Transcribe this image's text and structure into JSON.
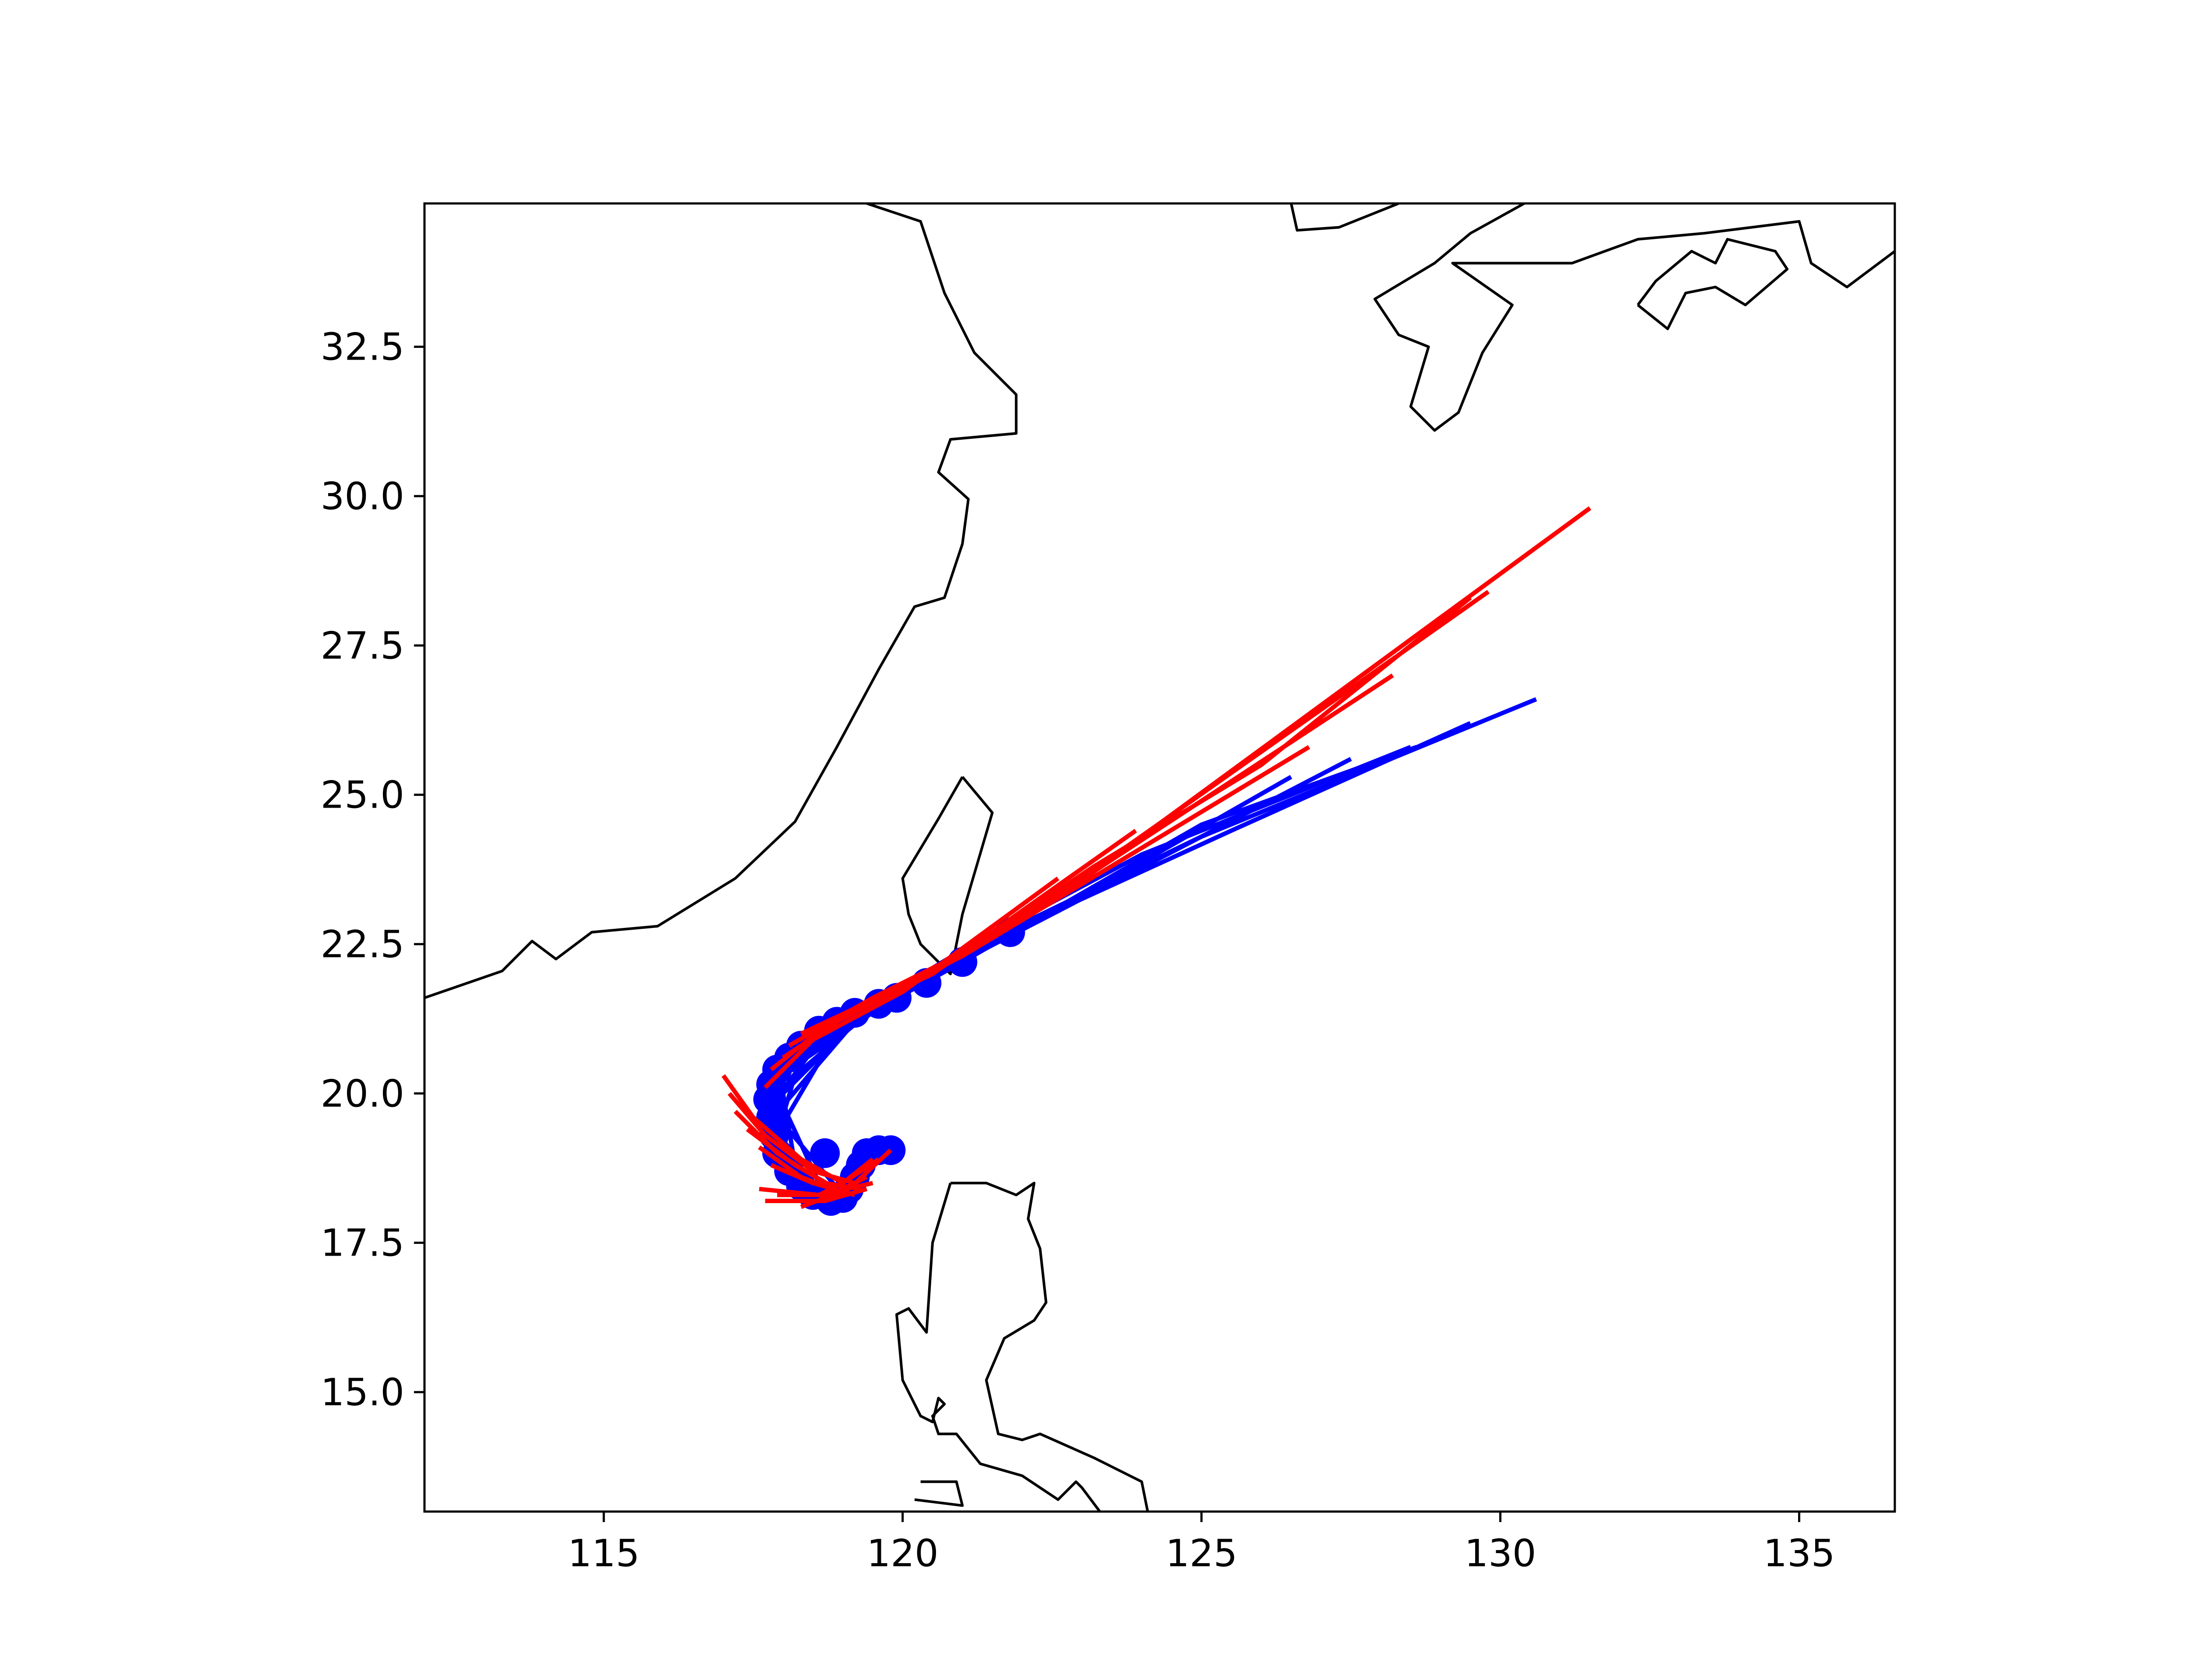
{
  "chart_data": {
    "type": "line",
    "title": "",
    "xlabel": "",
    "ylabel": "",
    "xlim": [
      112,
      136.6
    ],
    "ylim": [
      13.0,
      34.9
    ],
    "x_ticks": [
      115,
      120,
      125,
      130,
      135
    ],
    "y_ticks": [
      15.0,
      17.5,
      20.0,
      22.5,
      25.0,
      27.5,
      30.0,
      32.5
    ],
    "x_tick_labels": [
      "115",
      "120",
      "125",
      "130",
      "135"
    ],
    "y_tick_labels": [
      "15.0",
      "17.5",
      "20.0",
      "22.5",
      "25.0",
      "27.5",
      "30.0",
      "32.5"
    ],
    "grid": false,
    "legend": "none",
    "colors": {
      "observed": "#0000ff",
      "predicted": "#ff0000",
      "coastline": "#000000"
    },
    "observed_track_points": [
      [
        119.8,
        19.05
      ],
      [
        119.6,
        19.05
      ],
      [
        119.4,
        19.0
      ],
      [
        119.3,
        18.8
      ],
      [
        119.2,
        18.6
      ],
      [
        119.1,
        18.4
      ],
      [
        119.0,
        18.25
      ],
      [
        118.8,
        18.2
      ],
      [
        118.5,
        18.3
      ],
      [
        118.3,
        18.45
      ],
      [
        118.1,
        18.7
      ],
      [
        117.9,
        19.0
      ],
      [
        117.85,
        19.3
      ],
      [
        117.8,
        19.6
      ],
      [
        117.75,
        19.9
      ],
      [
        117.8,
        20.15
      ],
      [
        117.9,
        20.4
      ],
      [
        118.1,
        20.6
      ],
      [
        118.3,
        20.8
      ],
      [
        118.6,
        21.05
      ],
      [
        118.9,
        21.2
      ],
      [
        119.2,
        21.35
      ],
      [
        119.6,
        21.5
      ],
      [
        119.9,
        21.6
      ],
      [
        120.4,
        21.85
      ],
      [
        121.0,
        22.2
      ],
      [
        121.8,
        22.7
      ],
      [
        118.7,
        19.0
      ]
    ],
    "observed_forecasts": [
      [
        [
          119.0,
          18.3
        ],
        [
          118.0,
          19.5
        ],
        [
          119.0,
          21.2
        ],
        [
          121.0,
          22.4
        ],
        [
          124.0,
          24.0
        ],
        [
          128.5,
          25.8
        ]
      ],
      [
        [
          118.6,
          18.5
        ],
        [
          118.0,
          19.8
        ],
        [
          119.2,
          21.2
        ],
        [
          121.5,
          22.6
        ],
        [
          125.0,
          24.3
        ],
        [
          130.6,
          26.6
        ]
      ],
      [
        [
          118.2,
          18.8
        ],
        [
          118.0,
          20.0
        ],
        [
          119.3,
          21.3
        ],
        [
          122.0,
          22.8
        ],
        [
          125.5,
          24.4
        ],
        [
          129.5,
          26.2
        ]
      ],
      [
        [
          117.9,
          19.3
        ],
        [
          118.2,
          20.3
        ],
        [
          119.6,
          21.5
        ],
        [
          122.5,
          23.0
        ],
        [
          127.5,
          25.6
        ]
      ],
      [
        [
          117.8,
          19.8
        ],
        [
          118.4,
          20.6
        ],
        [
          120.0,
          21.7
        ],
        [
          123.0,
          23.3
        ],
        [
          126.5,
          25.3
        ]
      ],
      [
        [
          118.0,
          20.4
        ],
        [
          119.0,
          21.1
        ],
        [
          121.0,
          22.2
        ],
        [
          125.0,
          24.5
        ],
        [
          128.6,
          25.8
        ]
      ],
      [
        [
          119.6,
          19.1
        ],
        [
          119.3,
          18.7
        ],
        [
          119.0,
          18.4
        ]
      ]
    ],
    "predicted_forecasts": [
      [
        [
          117.0,
          20.3
        ],
        [
          117.5,
          19.6
        ],
        [
          118.3,
          18.9
        ],
        [
          119.0,
          18.5
        ],
        [
          119.6,
          18.9
        ]
      ],
      [
        [
          117.1,
          20.0
        ],
        [
          117.7,
          19.3
        ],
        [
          118.5,
          18.7
        ],
        [
          119.2,
          18.5
        ]
      ],
      [
        [
          117.2,
          19.7
        ],
        [
          117.9,
          19.0
        ],
        [
          118.7,
          18.5
        ],
        [
          119.3,
          18.4
        ]
      ],
      [
        [
          117.4,
          19.4
        ],
        [
          118.2,
          18.8
        ],
        [
          118.9,
          18.4
        ]
      ],
      [
        [
          117.6,
          19.1
        ],
        [
          118.3,
          18.6
        ],
        [
          119.1,
          18.3
        ]
      ],
      [
        [
          117.8,
          18.8
        ],
        [
          118.5,
          18.5
        ],
        [
          119.2,
          18.3
        ]
      ],
      [
        [
          117.6,
          18.4
        ],
        [
          118.6,
          18.3
        ],
        [
          119.5,
          18.5
        ]
      ],
      [
        [
          117.7,
          18.2
        ],
        [
          118.7,
          18.2
        ],
        [
          119.4,
          18.4
        ]
      ],
      [
        [
          117.9,
          18.3
        ],
        [
          118.8,
          18.3
        ],
        [
          119.4,
          18.6
        ]
      ],
      [
        [
          118.6,
          18.3
        ],
        [
          119.0,
          18.5
        ],
        [
          119.5,
          18.9
        ]
      ],
      [
        [
          118.3,
          18.1
        ],
        [
          119.1,
          18.4
        ],
        [
          119.8,
          19.05
        ]
      ],
      [
        [
          117.7,
          20.1
        ],
        [
          118.5,
          20.9
        ],
        [
          120.0,
          21.7
        ],
        [
          122.6,
          23.6
        ]
      ],
      [
        [
          117.8,
          20.4
        ],
        [
          118.8,
          21.2
        ],
        [
          120.5,
          22.0
        ],
        [
          123.9,
          24.4
        ]
      ],
      [
        [
          118.0,
          20.6
        ],
        [
          119.2,
          21.4
        ],
        [
          121.0,
          22.3
        ],
        [
          126.8,
          25.8
        ]
      ],
      [
        [
          118.1,
          20.8
        ],
        [
          119.5,
          21.6
        ],
        [
          121.5,
          22.6
        ],
        [
          128.2,
          27.0
        ]
      ],
      [
        [
          118.3,
          21.0
        ],
        [
          120.0,
          21.8
        ],
        [
          122.0,
          22.9
        ],
        [
          129.8,
          28.4
        ]
      ],
      [
        [
          118.6,
          21.1
        ],
        [
          120.4,
          22.0
        ],
        [
          122.5,
          23.2
        ],
        [
          131.5,
          29.8
        ]
      ],
      [
        [
          118.9,
          21.2
        ],
        [
          120.8,
          22.2
        ],
        [
          123.2,
          23.8
        ],
        [
          126.0,
          25.5
        ],
        [
          129.5,
          28.3
        ]
      ]
    ],
    "coastlines": [
      [
        [
          112.0,
          21.6
        ],
        [
          113.3,
          22.05
        ],
        [
          113.8,
          22.55
        ],
        [
          114.2,
          22.25
        ],
        [
          114.8,
          22.7
        ],
        [
          115.9,
          22.8
        ],
        [
          117.2,
          23.6
        ],
        [
          118.2,
          24.55
        ],
        [
          118.9,
          25.8
        ],
        [
          119.6,
          27.1
        ],
        [
          120.2,
          28.15
        ],
        [
          120.7,
          28.3
        ],
        [
          121.0,
          29.2
        ],
        [
          121.1,
          29.95
        ],
        [
          120.6,
          30.4
        ],
        [
          120.8,
          30.95
        ],
        [
          121.9,
          31.05
        ],
        [
          121.9,
          31.7
        ],
        [
          121.2,
          32.4
        ],
        [
          120.7,
          33.4
        ],
        [
          120.3,
          34.6
        ],
        [
          119.4,
          34.9
        ]
      ],
      [
        [
          126.5,
          34.9
        ],
        [
          126.6,
          34.45
        ],
        [
          127.3,
          34.5
        ],
        [
          128.3,
          34.9
        ]
      ],
      [
        [
          130.4,
          34.9
        ],
        [
          129.5,
          34.4
        ],
        [
          128.9,
          33.9
        ],
        [
          127.9,
          33.3
        ],
        [
          128.3,
          32.7
        ],
        [
          128.8,
          32.5
        ],
        [
          128.5,
          31.5
        ],
        [
          128.9,
          31.1
        ],
        [
          129.3,
          31.4
        ],
        [
          129.7,
          32.4
        ],
        [
          130.2,
          33.2
        ],
        [
          129.2,
          33.9
        ],
        [
          131.2,
          33.9
        ],
        [
          132.3,
          34.3
        ],
        [
          133.4,
          34.4
        ],
        [
          135.0,
          34.6
        ],
        [
          135.2,
          33.9
        ],
        [
          135.8,
          33.5
        ],
        [
          136.6,
          34.1
        ]
      ],
      [
        [
          132.3,
          33.2
        ],
        [
          132.6,
          33.6
        ],
        [
          133.2,
          34.1
        ],
        [
          133.6,
          33.9
        ],
        [
          133.8,
          34.3
        ],
        [
          134.6,
          34.1
        ],
        [
          134.8,
          33.8
        ],
        [
          134.1,
          33.2
        ],
        [
          133.6,
          33.5
        ],
        [
          133.1,
          33.4
        ],
        [
          132.8,
          32.8
        ],
        [
          132.3,
          33.2
        ]
      ],
      [
        [
          121.0,
          25.3
        ],
        [
          121.5,
          24.7
        ],
        [
          121.0,
          23.0
        ],
        [
          120.8,
          22.0
        ],
        [
          120.3,
          22.5
        ],
        [
          120.1,
          23.0
        ],
        [
          120.0,
          23.6
        ],
        [
          120.6,
          24.6
        ],
        [
          121.0,
          25.3
        ]
      ],
      [
        [
          120.8,
          18.5
        ],
        [
          121.4,
          18.5
        ],
        [
          121.9,
          18.3
        ],
        [
          122.2,
          18.5
        ],
        [
          122.1,
          17.9
        ],
        [
          122.3,
          17.4
        ],
        [
          122.4,
          16.5
        ],
        [
          122.2,
          16.2
        ],
        [
          121.7,
          15.9
        ],
        [
          121.4,
          15.2
        ],
        [
          121.6,
          14.3
        ],
        [
          122.0,
          14.2
        ],
        [
          122.3,
          14.3
        ],
        [
          123.2,
          13.9
        ],
        [
          124.0,
          13.5
        ],
        [
          124.1,
          13.0
        ]
      ],
      [
        [
          120.8,
          18.5
        ],
        [
          120.5,
          17.5
        ],
        [
          120.4,
          16.0
        ],
        [
          120.1,
          16.4
        ],
        [
          119.9,
          16.3
        ],
        [
          120.0,
          15.2
        ],
        [
          120.3,
          14.6
        ],
        [
          120.5,
          14.5
        ],
        [
          120.6,
          14.9
        ],
        [
          120.7,
          14.8
        ],
        [
          120.5,
          14.6
        ],
        [
          120.6,
          14.3
        ],
        [
          120.9,
          14.3
        ],
        [
          121.3,
          13.8
        ],
        [
          122.0,
          13.6
        ],
        [
          122.6,
          13.2
        ],
        [
          122.9,
          13.5
        ],
        [
          123.0,
          13.4
        ],
        [
          123.3,
          13.0
        ]
      ],
      [
        [
          120.3,
          13.5
        ],
        [
          120.9,
          13.5
        ],
        [
          121.0,
          13.1
        ],
        [
          120.2,
          13.2
        ]
      ]
    ]
  }
}
